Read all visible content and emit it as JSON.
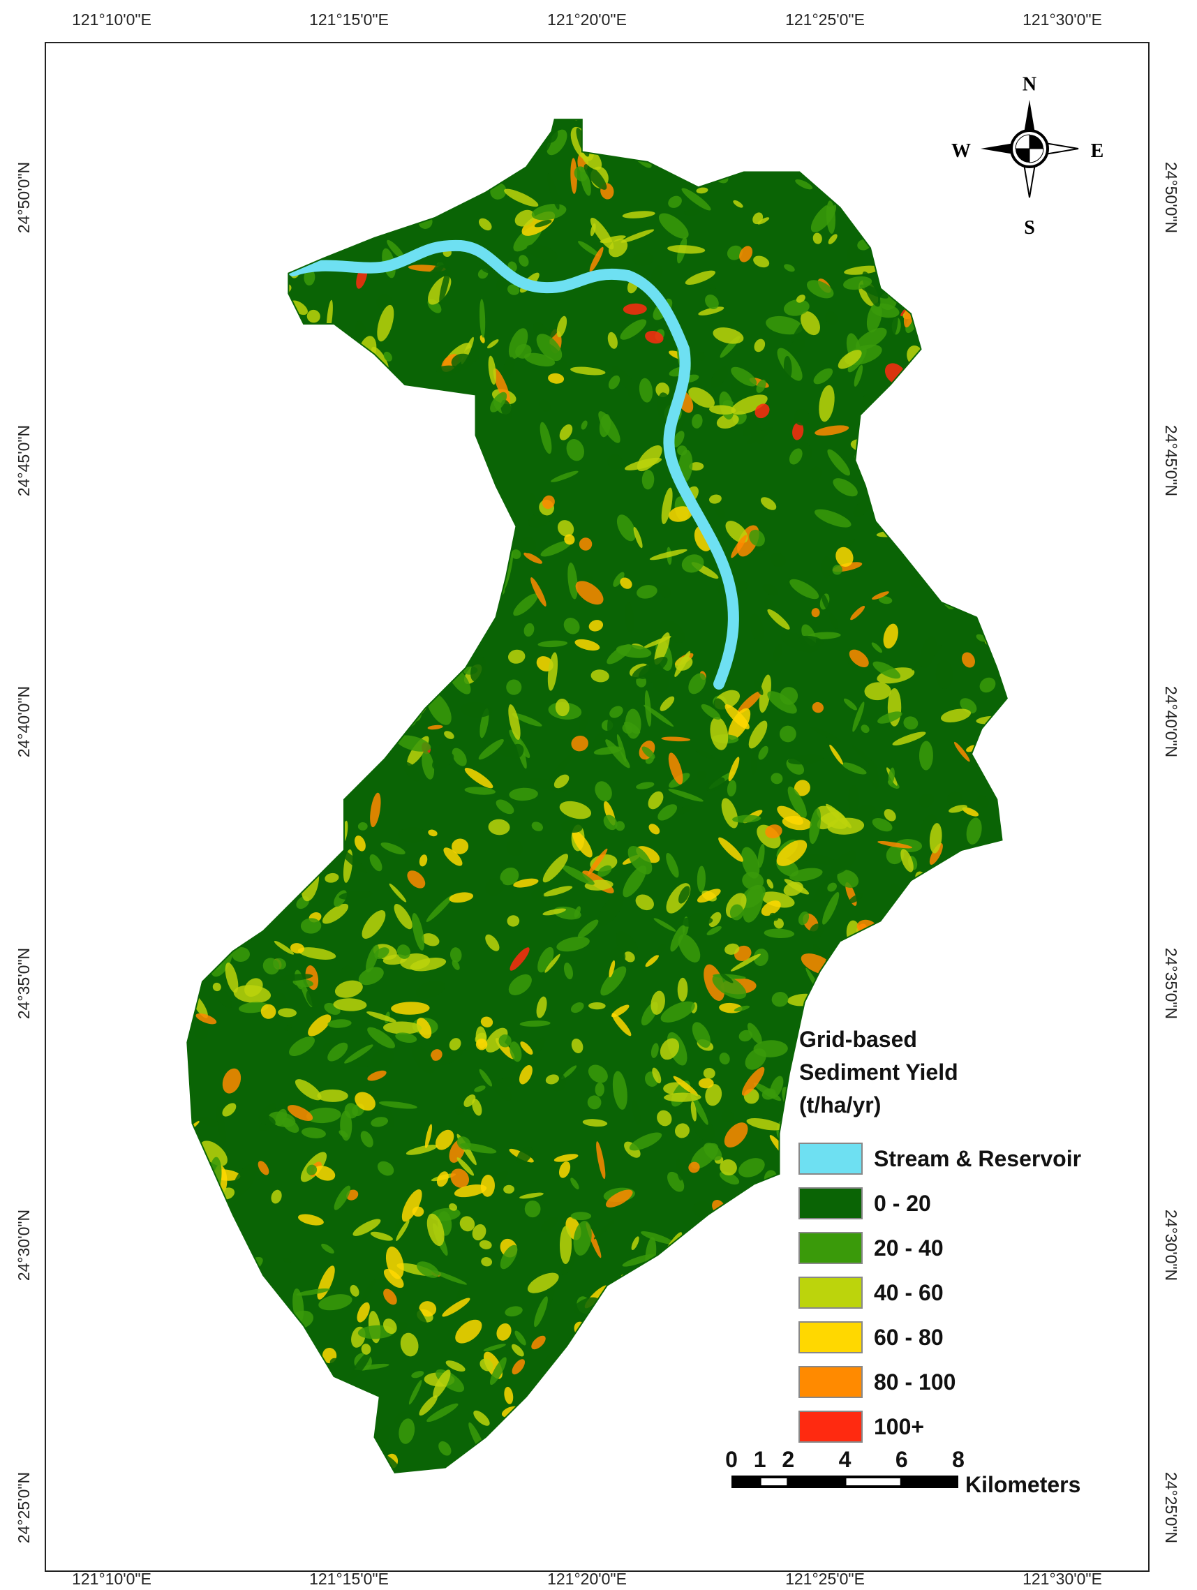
{
  "graticule": {
    "top": [
      "121°10'0\"E",
      "121°15'0\"E",
      "121°20'0\"E",
      "121°25'0\"E",
      "121°30'0\"E"
    ],
    "bottom": [
      "121°10'0\"E",
      "121°15'0\"E",
      "121°20'0\"E",
      "121°25'0\"E",
      "121°30'0\"E"
    ],
    "left": [
      "24°50'0\"N",
      "24°45'0\"N",
      "24°40'0\"N",
      "24°35'0\"N",
      "24°30'0\"N",
      "24°25'0\"N"
    ],
    "right": [
      "24°50'0\"N",
      "24°45'0\"N",
      "24°40'0\"N",
      "24°35'0\"N",
      "24°30'0\"N",
      "24°25'0\"N"
    ]
  },
  "compass": {
    "north": "N",
    "east": "E",
    "south": "S",
    "west": "W"
  },
  "legend": {
    "title": [
      "Grid-based",
      "Sediment Yield",
      "(t/ha/yr)"
    ],
    "items": [
      {
        "label": "Stream & Reservoir",
        "color": "#6ee0f2"
      },
      {
        "label": "0 - 20",
        "color": "#0a6405"
      },
      {
        "label": "20 - 40",
        "color": "#3a9a0a"
      },
      {
        "label": "40 - 60",
        "color": "#bcd40c"
      },
      {
        "label": "60 - 80",
        "color": "#ffd800"
      },
      {
        "label": "80 - 100",
        "color": "#ff8a00"
      },
      {
        "label": "100+",
        "color": "#ff2a10"
      }
    ]
  },
  "scale_bar": {
    "ticks": [
      0,
      1,
      2,
      4,
      6,
      8
    ],
    "unit": "Kilometers"
  }
}
